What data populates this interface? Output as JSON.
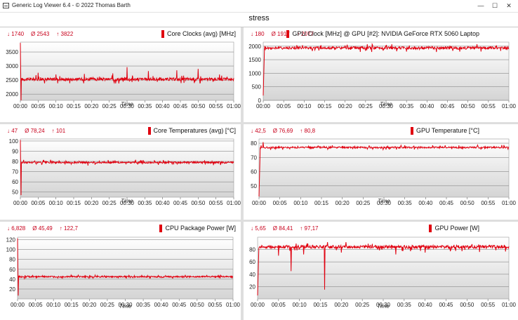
{
  "window": {
    "title": "Generic Log Viewer 6.4 - © 2022 Thomas Barth",
    "minimize_icon": "minimize-icon",
    "maximize_icon": "maximize-icon",
    "close_icon": "close-icon"
  },
  "page_title": "stress",
  "accent_color": "#e0000f",
  "chart_data": [
    {
      "type": "line",
      "title": "Core Clocks (avg) [MHz]",
      "stats": {
        "min": "↓ 1740",
        "avg": "Ø 2543",
        "max": "↑ 3822"
      },
      "xlabel": "Time",
      "x_ticks": [
        "00:00",
        "00:05",
        "00:10",
        "00:15",
        "00:20",
        "00:25",
        "00:30",
        "00:35",
        "00:40",
        "00:45",
        "00:50",
        "00:55",
        "01:00"
      ],
      "xlim": [
        0,
        60
      ],
      "y_ticks": [
        2000,
        2500,
        3000,
        3500
      ],
      "ylim": [
        1780,
        3850
      ],
      "series": [
        {
          "baseline": 2530,
          "start_value": 3822,
          "min_value": 1740,
          "noise": 70,
          "spikes": [
            [
              5,
              2760
            ],
            [
              10,
              2700
            ],
            [
              18,
              2720
            ],
            [
              26,
              2740
            ],
            [
              30,
              2960
            ],
            [
              36,
              2820
            ],
            [
              44,
              2850
            ],
            [
              46,
              2400
            ],
            [
              50,
              2900
            ],
            [
              56,
              2700
            ]
          ]
        }
      ]
    },
    {
      "type": "line",
      "title": "GPU Clock [MHz] @ GPU [#2]: NVIDIA GeForce RTX 5060 Laptop",
      "stats": {
        "min": "↓ 180",
        "avg": "Ø 1917",
        "max": "↑ 2077"
      },
      "xlabel": "Time",
      "x_ticks": [
        "00:00",
        "00:05",
        "00:10",
        "00:15",
        "00:20",
        "00:25",
        "00:30",
        "00:35",
        "00:40",
        "00:45",
        "00:50",
        "00:55",
        "01:00"
      ],
      "xlim": [
        0,
        60
      ],
      "y_ticks": [
        0,
        500,
        1000,
        1500,
        2000
      ],
      "ylim": [
        0,
        2150
      ],
      "series": [
        {
          "baseline": 1935,
          "start_value": 180,
          "min_value": 180,
          "noise": 70,
          "spikes": [
            [
              12,
              1820
            ],
            [
              25,
              1830
            ],
            [
              35,
              1800
            ],
            [
              48,
              1800
            ]
          ]
        }
      ]
    },
    {
      "type": "line",
      "title": "Core Temperatures (avg) [°C]",
      "stats": {
        "min": "↓ 47",
        "avg": "Ø 78,24",
        "max": "↑ 101"
      },
      "xlabel": "Time",
      "x_ticks": [
        "00:00",
        "00:05",
        "00:10",
        "00:15",
        "00:20",
        "00:25",
        "00:30",
        "00:35",
        "00:40",
        "00:45",
        "00:50",
        "00:55",
        "01:00"
      ],
      "xlim": [
        0,
        60
      ],
      "y_ticks": [
        50,
        60,
        70,
        80,
        90,
        100
      ],
      "ylim": [
        45,
        102
      ],
      "series": [
        {
          "baseline": 79,
          "start_value": 101,
          "min_value": 47,
          "noise": 1.2,
          "spikes": [
            [
              6,
              77
            ],
            [
              19,
              76
            ],
            [
              33,
              77
            ],
            [
              52,
              77
            ]
          ]
        }
      ]
    },
    {
      "type": "line",
      "title": "GPU Temperature [°C]",
      "stats": {
        "min": "↓ 42,5",
        "avg": "Ø 76,69",
        "max": "↑ 80,8"
      },
      "xlabel": "Time",
      "x_ticks": [
        "00:00",
        "00:05",
        "00:10",
        "00:15",
        "00:20",
        "00:25",
        "00:30",
        "00:35",
        "00:40",
        "00:45",
        "00:50",
        "00:55",
        "01:00"
      ],
      "xlim": [
        0,
        60
      ],
      "y_ticks": [
        50,
        60,
        70,
        80
      ],
      "ylim": [
        42,
        83
      ],
      "series": [
        {
          "baseline": 77,
          "start_value": 42.5,
          "min_value": 42.5,
          "noise": 0.8,
          "spikes": [
            [
              1,
              80.8
            ]
          ]
        }
      ]
    },
    {
      "type": "line",
      "title": "CPU Package Power [W]",
      "stats": {
        "min": "↓ 6,828",
        "avg": "Ø 45,49",
        "max": "↑ 122,7"
      },
      "xlabel": "Time",
      "x_ticks": [
        "00:00",
        "00:05",
        "00:10",
        "00:15",
        "00:20",
        "00:25",
        "00:30",
        "00:35",
        "00:40",
        "00:45",
        "00:50",
        "00:55",
        "01:00"
      ],
      "xlim": [
        0,
        60
      ],
      "y_ticks": [
        20,
        40,
        60,
        80,
        100,
        120
      ],
      "ylim": [
        0,
        125
      ],
      "series": [
        {
          "baseline": 45,
          "start_value": 122.7,
          "min_value": 6.828,
          "noise": 1.8,
          "spikes": []
        }
      ]
    },
    {
      "type": "line",
      "title": "GPU Power [W]",
      "stats": {
        "min": "↓ 5,65",
        "avg": "Ø 84,41",
        "max": "↑ 97,17"
      },
      "xlabel": "Time",
      "x_ticks": [
        "00:00",
        "00:05",
        "00:10",
        "00:15",
        "00:20",
        "00:25",
        "00:30",
        "00:35",
        "00:40",
        "00:45",
        "00:50",
        "00:55",
        "01:00"
      ],
      "xlim": [
        0,
        60
      ],
      "y_ticks": [
        20,
        40,
        60,
        80
      ],
      "ylim": [
        0,
        100
      ],
      "series": [
        {
          "baseline": 84.4,
          "start_value": 5.65,
          "min_value": 5.65,
          "noise": 3.5,
          "spikes": [
            [
              5,
              70
            ],
            [
              8,
              45
            ],
            [
              11,
              72
            ],
            [
              16,
              15
            ],
            [
              20,
              75
            ],
            [
              33,
              72
            ],
            [
              40,
              75
            ],
            [
              46,
              78
            ],
            [
              53,
              76
            ]
          ]
        }
      ]
    }
  ]
}
